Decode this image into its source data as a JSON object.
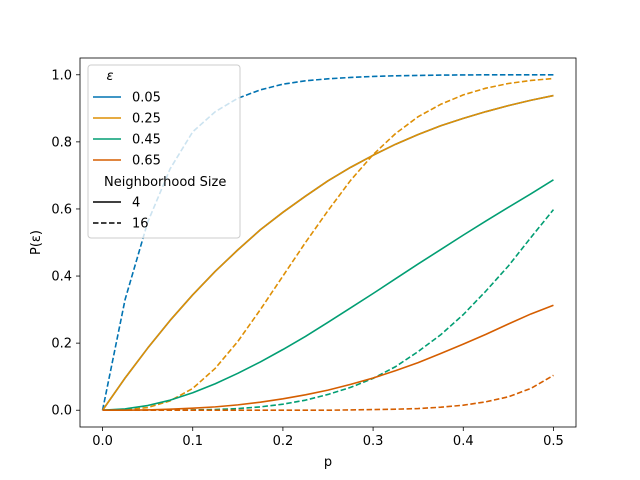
{
  "chart_data": {
    "type": "line",
    "xlabel": "p",
    "ylabel": "P(ε)",
    "xlim": [
      -0.025,
      0.525
    ],
    "ylim": [
      -0.05,
      1.05
    ],
    "xticks": [
      0.0,
      0.1,
      0.2,
      0.3,
      0.4,
      0.5
    ],
    "xtick_labels": [
      "0.0",
      "0.1",
      "0.2",
      "0.3",
      "0.4",
      "0.5"
    ],
    "yticks": [
      0.0,
      0.2,
      0.4,
      0.6,
      0.8,
      1.0
    ],
    "ytick_labels": [
      "0.0",
      "0.2",
      "0.4",
      "0.6",
      "0.8",
      "1.0"
    ],
    "grid": false,
    "legend_position": "top-left",
    "legend": {
      "title_hue": "ε",
      "hue_entries": [
        {
          "label": "0.05",
          "color": "#0173b2"
        },
        {
          "label": "0.25",
          "color": "#de8f05"
        },
        {
          "label": "0.45",
          "color": "#029e73"
        },
        {
          "label": "0.65",
          "color": "#d55e00"
        }
      ],
      "title_style": "Neighborhood Size",
      "style_entries": [
        {
          "label": "4",
          "dash": "solid"
        },
        {
          "label": "16",
          "dash": "dashed"
        }
      ]
    },
    "x": [
      0.0,
      0.025,
      0.05,
      0.075,
      0.1,
      0.125,
      0.15,
      0.175,
      0.2,
      0.225,
      0.25,
      0.275,
      0.3,
      0.325,
      0.35,
      0.375,
      0.4,
      0.425,
      0.45,
      0.475,
      0.5
    ],
    "series": [
      {
        "hue": "0.05",
        "size": "4",
        "color": "#0173b2",
        "dash": "solid",
        "values": [
          0.0,
          0.096,
          0.185,
          0.268,
          0.344,
          0.414,
          0.478,
          0.538,
          0.59,
          0.638,
          0.684,
          0.724,
          0.76,
          0.793,
          0.822,
          0.848,
          0.87,
          0.89,
          0.908,
          0.924,
          0.938
        ]
      },
      {
        "hue": "0.05",
        "size": "16",
        "color": "#0173b2",
        "dash": "dashed",
        "values": [
          0.0,
          0.33,
          0.56,
          0.72,
          0.83,
          0.89,
          0.93,
          0.955,
          0.972,
          0.982,
          0.988,
          0.992,
          0.995,
          0.997,
          0.998,
          0.999,
          0.9995,
          0.9998,
          0.9999,
          1.0,
          1.0
        ]
      },
      {
        "hue": "0.25",
        "size": "4",
        "color": "#de8f05",
        "dash": "solid",
        "values": [
          0.0,
          0.096,
          0.185,
          0.268,
          0.344,
          0.414,
          0.478,
          0.538,
          0.59,
          0.638,
          0.684,
          0.724,
          0.76,
          0.793,
          0.822,
          0.848,
          0.87,
          0.89,
          0.908,
          0.924,
          0.938
        ]
      },
      {
        "hue": "0.25",
        "size": "16",
        "color": "#de8f05",
        "dash": "dashed",
        "values": [
          0.0,
          0.001,
          0.008,
          0.028,
          0.065,
          0.125,
          0.205,
          0.3,
          0.4,
          0.5,
          0.595,
          0.685,
          0.762,
          0.825,
          0.875,
          0.912,
          0.94,
          0.96,
          0.974,
          0.983,
          0.989
        ]
      },
      {
        "hue": "0.45",
        "size": "4",
        "color": "#029e73",
        "dash": "solid",
        "values": [
          0.0,
          0.004,
          0.014,
          0.03,
          0.052,
          0.079,
          0.11,
          0.144,
          0.181,
          0.22,
          0.262,
          0.305,
          0.348,
          0.392,
          0.436,
          0.479,
          0.522,
          0.564,
          0.605,
          0.645,
          0.687
        ]
      },
      {
        "hue": "0.45",
        "size": "16",
        "color": "#029e73",
        "dash": "dashed",
        "values": [
          0.0,
          0.0,
          0.0,
          0.0,
          0.001,
          0.002,
          0.005,
          0.01,
          0.018,
          0.03,
          0.047,
          0.068,
          0.095,
          0.13,
          0.175,
          0.225,
          0.285,
          0.355,
          0.43,
          0.515,
          0.598
        ]
      },
      {
        "hue": "0.65",
        "size": "4",
        "color": "#d55e00",
        "dash": "solid",
        "values": [
          0.0,
          0.0,
          0.001,
          0.003,
          0.006,
          0.01,
          0.016,
          0.024,
          0.034,
          0.046,
          0.06,
          0.077,
          0.096,
          0.118,
          0.142,
          0.169,
          0.197,
          0.226,
          0.257,
          0.287,
          0.313
        ]
      },
      {
        "hue": "0.65",
        "size": "16",
        "color": "#d55e00",
        "dash": "dashed",
        "values": [
          0.0,
          0.0,
          0.0,
          0.0,
          0.0,
          0.0,
          0.0,
          0.0,
          0.0,
          0.0,
          0.0,
          0.001,
          0.002,
          0.003,
          0.005,
          0.009,
          0.015,
          0.025,
          0.04,
          0.065,
          0.104
        ]
      }
    ]
  }
}
